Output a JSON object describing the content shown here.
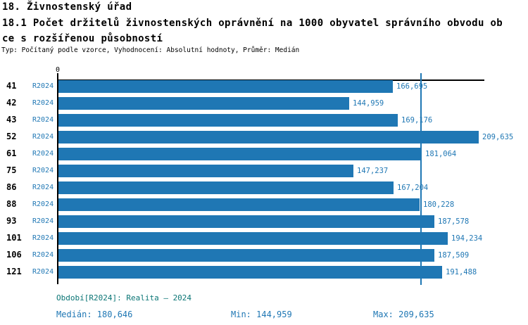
{
  "header": {
    "section_title": "18. Živnostenský úřad",
    "indicator_title_line1": "18.1 Počet držitelů živnostenských oprávnění na 1000 obyvatel správního obvodu ob",
    "indicator_title_line2": "ce s rozšířenou působností",
    "meta": "Typ: Počítaný podle vzorce, Vyhodnocení: Absolutní hodnoty, Průměr: Medián"
  },
  "chart_data": {
    "type": "bar",
    "orientation": "horizontal",
    "title": "18.1 Počet držitelů živnostenských oprávnění na 1000 obyvatel správního obvodu obce s rozšířenou působností",
    "categories": [
      "41",
      "42",
      "43",
      "52",
      "61",
      "75",
      "86",
      "88",
      "93",
      "101",
      "106",
      "121"
    ],
    "series": [
      {
        "name": "R2024",
        "values": [
          166695,
          144959,
          169176,
          209635,
          181064,
          147237,
          167204,
          180228,
          187578,
          194234,
          187509,
          191488
        ]
      }
    ],
    "value_labels": [
      "166,695",
      "144,959",
      "169,176",
      "209,635",
      "181,064",
      "147,237",
      "167,204",
      "180,228",
      "187,578",
      "194,234",
      "187,509",
      "191,488"
    ],
    "x_tick_labels": [
      "0"
    ],
    "xlim": [
      0,
      212400
    ],
    "median_value": 180646,
    "grid": false,
    "legend_position": "none"
  },
  "footer": {
    "period_info": "Období[R2024]: Realita – 2024",
    "median_label": "Medián: 180,646",
    "min_label": "Min: 144,959",
    "max_label": "Max: 209,635"
  },
  "colors": {
    "bar": "#1F77B4",
    "blue_text": "#1F77B4",
    "teal_text": "#0A7575",
    "axis": "#000000"
  }
}
